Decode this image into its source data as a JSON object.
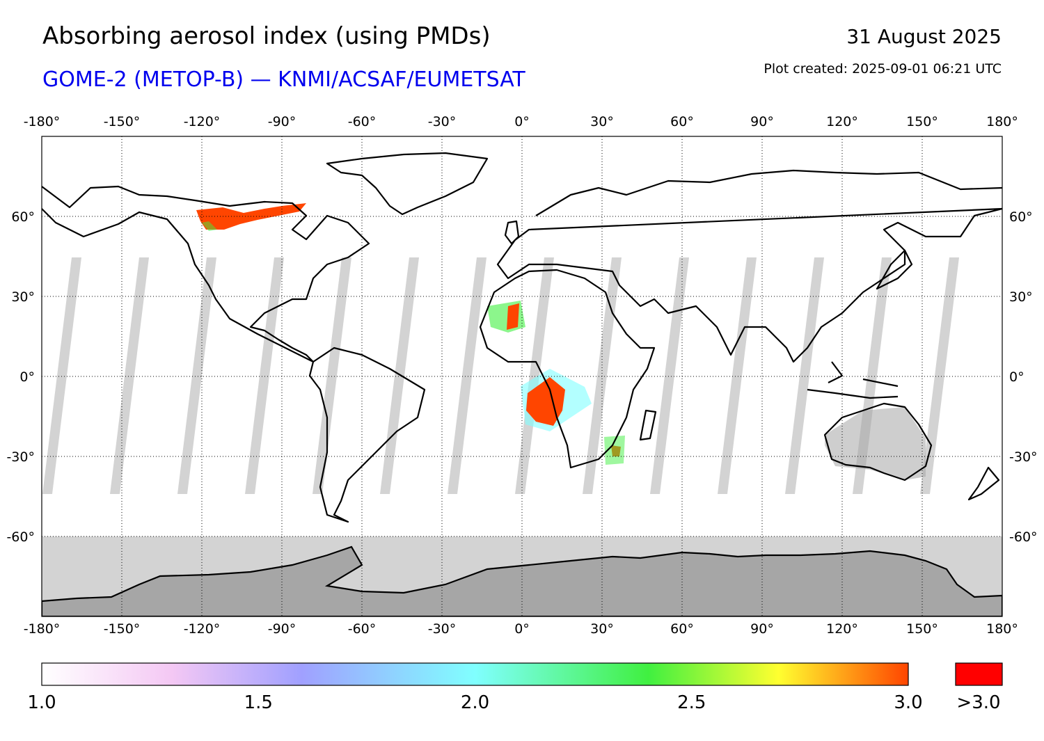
{
  "header": {
    "title": "Absorbing aerosol index (using PMDs)",
    "subtitle": "GOME-2 (METOP-B) — KNMI/ACSAF/EUMETSAT",
    "date": "31 August 2025",
    "created": "Plot created: 2025-09-01 06:21 UTC"
  },
  "colors": {
    "subtitle": "#0000ee",
    "no_data": "#d3d3d3",
    "land_no_data": "#a6a6a6",
    "coast": "#000000",
    "over_max": "#ff0000"
  },
  "map": {
    "projection": "equirectangular",
    "lon_range": [
      -180,
      180
    ],
    "lat_range": [
      -90,
      90
    ],
    "lon_ticks": [
      "-180°",
      "-150°",
      "-120°",
      "-90°",
      "-60°",
      "-30°",
      "0°",
      "30°",
      "60°",
      "90°",
      "120°",
      "150°",
      "180°"
    ],
    "lat_ticks": [
      "60°",
      "30°",
      "0°",
      "-30°",
      "-60°"
    ],
    "grid": "dotted",
    "plumes": [
      {
        "region": "Canada",
        "value": 3.0
      },
      {
        "region": "Northwest Africa",
        "value": 2.8
      },
      {
        "region": "Central Africa",
        "value": 3.0
      },
      {
        "region": "Southeast Africa",
        "value": 2.6
      }
    ]
  },
  "colorbar": {
    "ticks": [
      "1.0",
      "1.5",
      "2.0",
      "2.5",
      "3.0"
    ],
    "over_label": ">3.0",
    "stops": [
      {
        "v": 1.0,
        "c": "#ffffff"
      },
      {
        "v": 1.3,
        "c": "#f4c8f4"
      },
      {
        "v": 1.6,
        "c": "#a0a0ff"
      },
      {
        "v": 2.0,
        "c": "#80ffff"
      },
      {
        "v": 2.4,
        "c": "#40f040"
      },
      {
        "v": 2.7,
        "c": "#ffff30"
      },
      {
        "v": 3.0,
        "c": "#ff4500"
      }
    ]
  }
}
